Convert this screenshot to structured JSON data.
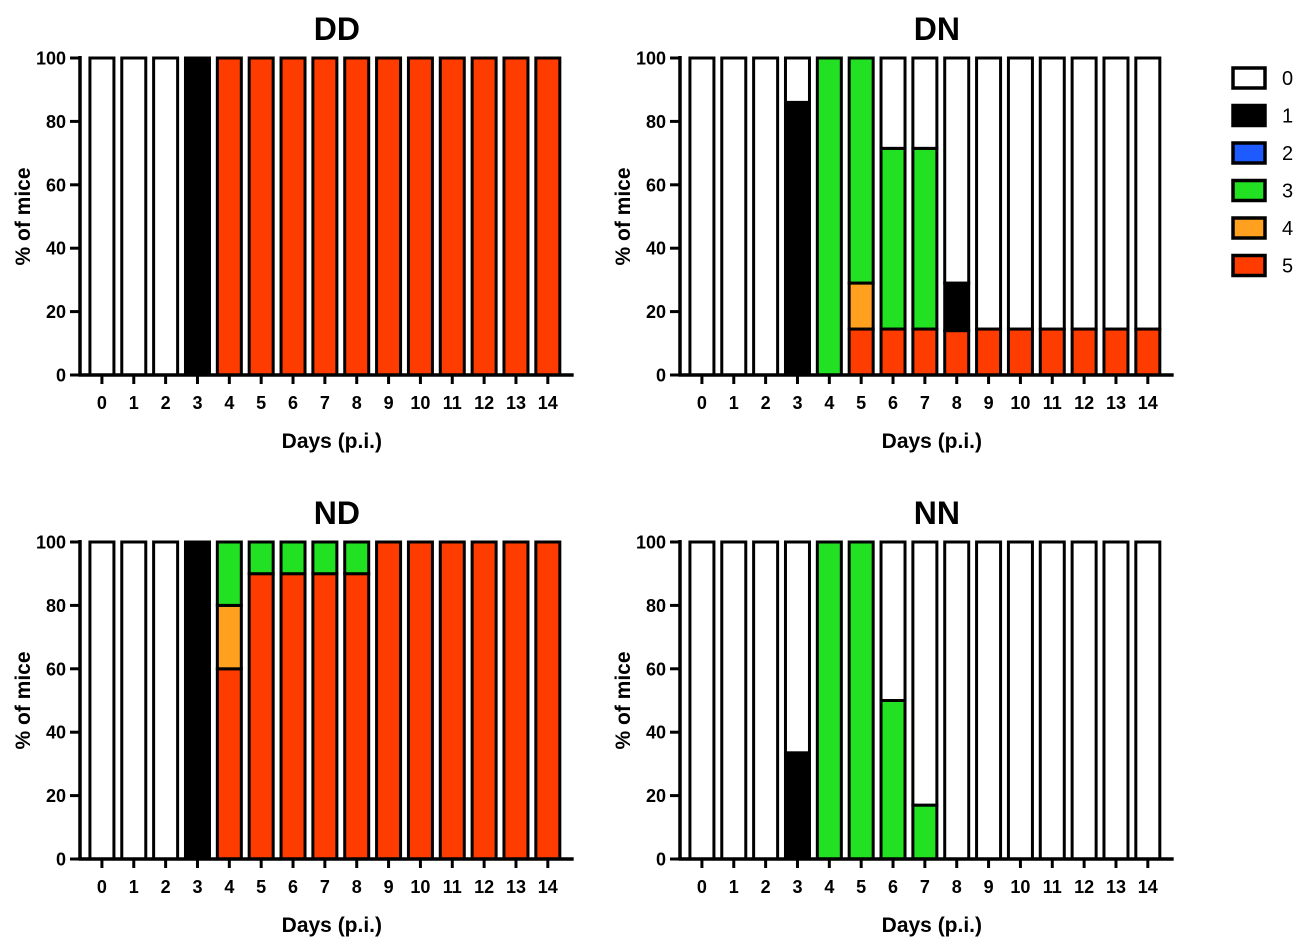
{
  "chart_data": [
    {
      "type": "bar",
      "stacked": true,
      "title": "DD",
      "xlabel": "Days (p.i.)",
      "ylabel": "% of mice",
      "categories": [
        "0",
        "1",
        "2",
        "3",
        "4",
        "5",
        "6",
        "7",
        "8",
        "9",
        "10",
        "11",
        "12",
        "13",
        "14"
      ],
      "ylim": [
        0,
        100
      ],
      "yticks": [
        "0",
        "20",
        "40",
        "60",
        "80",
        "100"
      ],
      "series": [
        {
          "name": "0",
          "values": [
            100,
            100,
            100,
            0,
            0,
            0,
            0,
            0,
            0,
            0,
            0,
            0,
            0,
            0,
            0
          ]
        },
        {
          "name": "1",
          "values": [
            0,
            0,
            0,
            100,
            0,
            0,
            0,
            0,
            0,
            0,
            0,
            0,
            0,
            0,
            0
          ]
        },
        {
          "name": "2",
          "values": [
            0,
            0,
            0,
            0,
            0,
            0,
            0,
            0,
            0,
            0,
            0,
            0,
            0,
            0,
            0
          ]
        },
        {
          "name": "3",
          "values": [
            0,
            0,
            0,
            0,
            0,
            0,
            0,
            0,
            0,
            0,
            0,
            0,
            0,
            0,
            0
          ]
        },
        {
          "name": "4",
          "values": [
            0,
            0,
            0,
            0,
            0,
            0,
            0,
            0,
            0,
            0,
            0,
            0,
            0,
            0,
            0
          ]
        },
        {
          "name": "5",
          "values": [
            0,
            0,
            0,
            0,
            100,
            100,
            100,
            100,
            100,
            100,
            100,
            100,
            100,
            100,
            100
          ]
        }
      ]
    },
    {
      "type": "bar",
      "stacked": true,
      "title": "DN",
      "xlabel": "Days (p.i.)",
      "ylabel": "% of mice",
      "categories": [
        "0",
        "1",
        "2",
        "3",
        "4",
        "5",
        "6",
        "7",
        "8",
        "9",
        "10",
        "11",
        "12",
        "13",
        "14"
      ],
      "ylim": [
        0,
        100
      ],
      "yticks": [
        "0",
        "20",
        "40",
        "60",
        "80",
        "100"
      ],
      "series": [
        {
          "name": "0",
          "values": [
            100,
            100,
            100,
            14,
            0,
            0,
            28.5,
            28.5,
            71,
            85.5,
            85.5,
            85.5,
            85.5,
            85.5,
            85.5
          ]
        },
        {
          "name": "1",
          "values": [
            0,
            0,
            0,
            86,
            0,
            0,
            0,
            0,
            15,
            0,
            0,
            0,
            0,
            0,
            0
          ]
        },
        {
          "name": "2",
          "values": [
            0,
            0,
            0,
            0,
            0,
            0,
            0,
            0,
            0,
            0,
            0,
            0,
            0,
            0,
            0
          ]
        },
        {
          "name": "3",
          "values": [
            0,
            0,
            0,
            0,
            100,
            71,
            57,
            57,
            0,
            0,
            0,
            0,
            0,
            0,
            0
          ]
        },
        {
          "name": "4",
          "values": [
            0,
            0,
            0,
            0,
            0,
            14.5,
            0,
            0,
            0,
            0,
            0,
            0,
            0,
            0,
            0
          ]
        },
        {
          "name": "5",
          "values": [
            0,
            0,
            0,
            0,
            0,
            14.5,
            14.5,
            14.5,
            14,
            14.5,
            14.5,
            14.5,
            14.5,
            14.5,
            14.5
          ]
        }
      ]
    },
    {
      "type": "bar",
      "stacked": true,
      "title": "ND",
      "xlabel": "Days (p.i.)",
      "ylabel": "% of mice",
      "categories": [
        "0",
        "1",
        "2",
        "3",
        "4",
        "5",
        "6",
        "7",
        "8",
        "9",
        "10",
        "11",
        "12",
        "13",
        "14"
      ],
      "ylim": [
        0,
        100
      ],
      "yticks": [
        "0",
        "20",
        "40",
        "60",
        "80",
        "100"
      ],
      "series": [
        {
          "name": "0",
          "values": [
            100,
            100,
            100,
            0,
            0,
            0,
            0,
            0,
            0,
            0,
            0,
            0,
            0,
            0,
            0
          ]
        },
        {
          "name": "1",
          "values": [
            0,
            0,
            0,
            100,
            0,
            0,
            0,
            0,
            0,
            0,
            0,
            0,
            0,
            0,
            0
          ]
        },
        {
          "name": "2",
          "values": [
            0,
            0,
            0,
            0,
            0,
            0,
            0,
            0,
            0,
            0,
            0,
            0,
            0,
            0,
            0
          ]
        },
        {
          "name": "3",
          "values": [
            0,
            0,
            0,
            0,
            20,
            10,
            10,
            10,
            10,
            0,
            0,
            0,
            0,
            0,
            0
          ]
        },
        {
          "name": "4",
          "values": [
            0,
            0,
            0,
            0,
            20,
            0,
            0,
            0,
            0,
            0,
            0,
            0,
            0,
            0,
            0
          ]
        },
        {
          "name": "5",
          "values": [
            0,
            0,
            0,
            0,
            60,
            90,
            90,
            90,
            90,
            100,
            100,
            100,
            100,
            100,
            100
          ]
        }
      ]
    },
    {
      "type": "bar",
      "stacked": true,
      "title": "NN",
      "xlabel": "Days (p.i.)",
      "ylabel": "% of mice",
      "categories": [
        "0",
        "1",
        "2",
        "3",
        "4",
        "5",
        "6",
        "7",
        "8",
        "9",
        "10",
        "11",
        "12",
        "13",
        "14"
      ],
      "ylim": [
        0,
        100
      ],
      "yticks": [
        "0",
        "20",
        "40",
        "60",
        "80",
        "100"
      ],
      "series": [
        {
          "name": "0",
          "values": [
            100,
            100,
            100,
            66.5,
            0,
            0,
            50,
            83,
            100,
            100,
            100,
            100,
            100,
            100,
            100
          ]
        },
        {
          "name": "1",
          "values": [
            0,
            0,
            0,
            33.5,
            0,
            0,
            0,
            0,
            0,
            0,
            0,
            0,
            0,
            0,
            0
          ]
        },
        {
          "name": "2",
          "values": [
            0,
            0,
            0,
            0,
            0,
            0,
            0,
            0,
            0,
            0,
            0,
            0,
            0,
            0,
            0
          ]
        },
        {
          "name": "3",
          "values": [
            0,
            0,
            0,
            0,
            100,
            100,
            50,
            17,
            0,
            0,
            0,
            0,
            0,
            0,
            0
          ]
        },
        {
          "name": "4",
          "values": [
            0,
            0,
            0,
            0,
            0,
            0,
            0,
            0,
            0,
            0,
            0,
            0,
            0,
            0,
            0
          ]
        },
        {
          "name": "5",
          "values": [
            0,
            0,
            0,
            0,
            0,
            0,
            0,
            0,
            0,
            0,
            0,
            0,
            0,
            0,
            0
          ]
        }
      ]
    }
  ],
  "legend": {
    "placement": "right",
    "items": [
      {
        "label": "0",
        "color": "#ffffff"
      },
      {
        "label": "1",
        "color": "#000000"
      },
      {
        "label": "2",
        "color": "#1e5bff"
      },
      {
        "label": "3",
        "color": "#22e022"
      },
      {
        "label": "4",
        "color": "#ffa01e"
      },
      {
        "label": "5",
        "color": "#ff3c00"
      }
    ]
  }
}
